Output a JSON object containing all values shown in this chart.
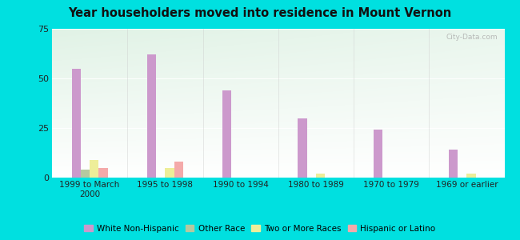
{
  "title": "Year householders moved into residence in Mount Vernon",
  "categories": [
    "1999 to March\n2000",
    "1995 to 1998",
    "1990 to 1994",
    "1980 to 1989",
    "1970 to 1979",
    "1969 or earlier"
  ],
  "series": {
    "White Non-Hispanic": [
      55,
      62,
      44,
      30,
      24,
      14
    ],
    "Other Race": [
      4,
      0,
      0,
      0,
      0,
      0
    ],
    "Two or More Races": [
      9,
      5,
      0,
      2,
      0,
      2
    ],
    "Hispanic or Latino": [
      5,
      8,
      0,
      0,
      0,
      0
    ]
  },
  "colors": {
    "White Non-Hispanic": "#cc99cc",
    "Other Race": "#b5c9a0",
    "Two or More Races": "#eeee99",
    "Hispanic or Latino": "#f4aaaa"
  },
  "ylim": [
    0,
    75
  ],
  "yticks": [
    0,
    25,
    50,
    75
  ],
  "background_outer": "#00e0e0",
  "watermark": "City-Data.com",
  "bar_width": 0.12
}
